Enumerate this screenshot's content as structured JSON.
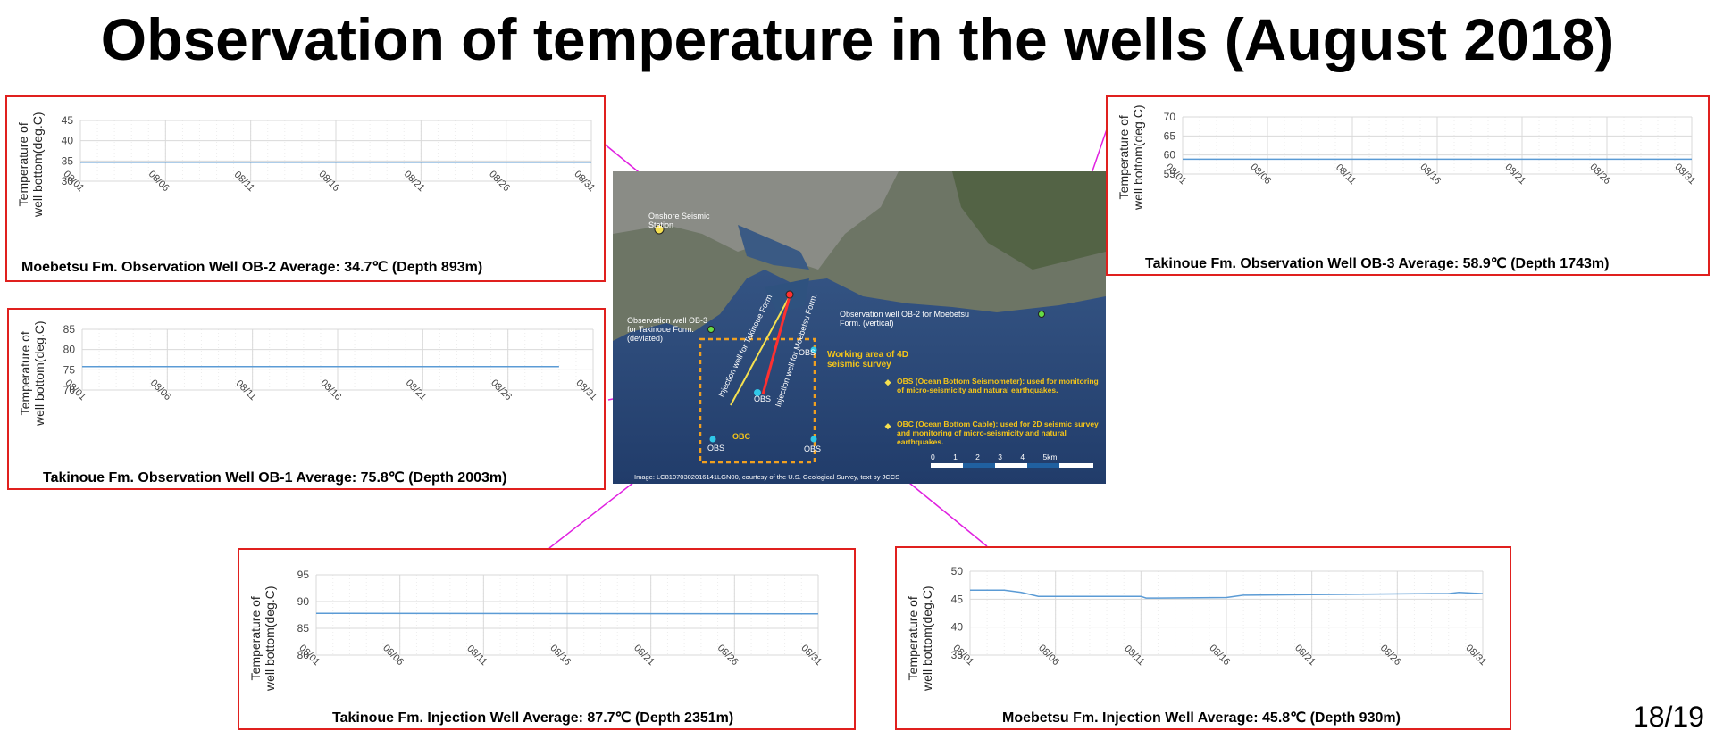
{
  "title": "Observation of temperature in the wells (August 2018)",
  "page_number": "18/19",
  "colors": {
    "frame": "#e0201e",
    "line": "#5b9bd5",
    "connector": "#e020e0",
    "grid": "#d9d9d9"
  },
  "map": {
    "labels": {
      "onshore": "Onshore Seismic Station",
      "ob3": "Observation well OB-3 for Takinoue Form. (deviated)",
      "ob2": "Observation well OB-2 for Moebetsu Form. (vertical)",
      "inj_takinoue": "Injection well for Takinoue Form.",
      "inj_moebetsu": "Injection well for Moebetsu Form.",
      "obs": "OBS",
      "obc": "OBC",
      "working_area": "Working area of 4D seismic survey",
      "note_obs": "OBS (Ocean Bottom Seismometer): used for monitoring of micro-seismicity and natural earthquakes.",
      "note_obc": "OBC (Ocean Bottom Cable): used for 2D seismic survey and monitoring of micro-seismicity and natural earthquakes.",
      "scale": "0 1 2 3 4 5km",
      "credit": "Image: LC81070302016141LGN00, courtesy of the U.S. Geological Survey, text by JCCS"
    }
  },
  "chart_data": [
    {
      "type": "line",
      "id": "ob2",
      "caption": "Moebetsu Fm. Observation Well OB-2 Average: 34.7℃ (Depth 893m)",
      "ylabel": "Temperature of well bottom(deg.C)",
      "ylim": [
        30,
        45
      ],
      "yticks": [
        30,
        35,
        40,
        45
      ],
      "xticks": [
        "08/01",
        "08/06",
        "08/11",
        "08/16",
        "08/21",
        "08/26",
        "08/31"
      ],
      "x": [
        1,
        31
      ],
      "values": [
        34.7,
        34.7
      ],
      "grid": true
    },
    {
      "type": "line",
      "id": "ob1",
      "caption": "Takinoue Fm. Observation Well OB-1 Average: 75.8℃ (Depth 2003m)",
      "ylabel": "Temperature of well bottom(deg.C)",
      "ylim": [
        70,
        85
      ],
      "yticks": [
        70,
        75,
        80,
        85
      ],
      "xticks": [
        "08/01",
        "08/06",
        "08/11",
        "08/16",
        "08/21",
        "08/26",
        "08/31"
      ],
      "x": [
        1,
        29
      ],
      "values": [
        75.8,
        75.8
      ],
      "grid": true
    },
    {
      "type": "line",
      "id": "ob3",
      "caption": "Takinoue Fm. Observation Well OB-3 Average: 58.9℃ (Depth 1743m)",
      "ylabel": "Temperature of well bottom(deg.C)",
      "ylim": [
        55,
        70
      ],
      "yticks": [
        55,
        60,
        65,
        70
      ],
      "xticks": [
        "08/01",
        "08/06",
        "08/11",
        "08/16",
        "08/21",
        "08/26",
        "08/31"
      ],
      "x": [
        1,
        31
      ],
      "values": [
        58.9,
        58.9
      ],
      "grid": true
    },
    {
      "type": "line",
      "id": "inj_takinoue",
      "caption": "Takinoue Fm. Injection Well Average: 87.7℃ (Depth 2351m)",
      "ylabel": "Temperature of well bottom(deg.C)",
      "ylim": [
        80,
        95
      ],
      "yticks": [
        80,
        85,
        90,
        95
      ],
      "xticks": [
        "08/01",
        "08/06",
        "08/11",
        "08/16",
        "08/21",
        "08/26",
        "08/31"
      ],
      "x": [
        1,
        31
      ],
      "values": [
        87.8,
        87.7
      ],
      "grid": true
    },
    {
      "type": "line",
      "id": "inj_moebetsu",
      "caption": "Moebetsu Fm. Injection Well Average: 45.8℃ (Depth 930m)",
      "ylabel": "Temperature of well bottom(deg.C)",
      "ylim": [
        35,
        50
      ],
      "yticks": [
        35,
        40,
        45,
        50
      ],
      "xticks": [
        "08/01",
        "08/06",
        "08/11",
        "08/16",
        "08/21",
        "08/26",
        "08/31"
      ],
      "x": [
        1,
        3,
        4,
        5,
        7,
        11,
        11.3,
        12,
        16,
        17,
        28,
        29,
        29.6,
        31
      ],
      "values": [
        46.6,
        46.6,
        46.2,
        45.5,
        45.5,
        45.5,
        45.2,
        45.2,
        45.3,
        45.7,
        46.0,
        46.0,
        46.2,
        46.0
      ],
      "grid": true
    }
  ]
}
